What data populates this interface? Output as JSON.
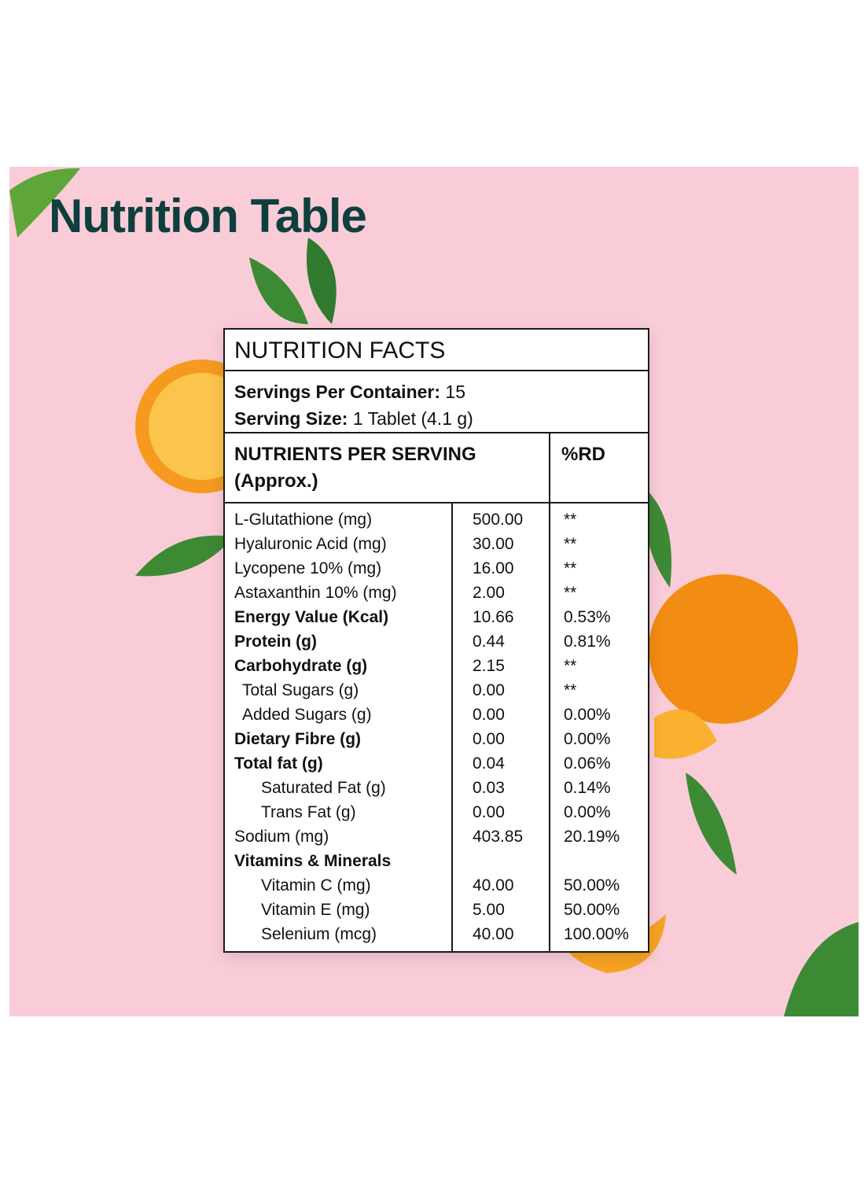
{
  "title": "Nutrition Table",
  "facts": {
    "heading": "NUTRITION FACTS",
    "servings_label": "Servings Per Container:",
    "servings_value": "15",
    "size_label": "Serving Size:",
    "size_value": "1 Tablet (4.1 g)",
    "col_nutrients": "NUTRIENTS PER SERVING (Approx.)",
    "col_rd": "%RD",
    "rows": [
      {
        "name": "L-Glutathione (mg)",
        "amount": "500.00",
        "rd": "**",
        "bold": false,
        "indent": 0
      },
      {
        "name": "Hyaluronic Acid (mg)",
        "amount": "30.00",
        "rd": "**",
        "bold": false,
        "indent": 0
      },
      {
        "name": "Lycopene 10% (mg)",
        "amount": "16.00",
        "rd": "**",
        "bold": false,
        "indent": 0
      },
      {
        "name": "Astaxanthin 10% (mg)",
        "amount": "2.00",
        "rd": "**",
        "bold": false,
        "indent": 0
      },
      {
        "name": "Energy Value (Kcal)",
        "amount": "10.66",
        "rd": "0.53%",
        "bold": true,
        "indent": 0
      },
      {
        "name": "Protein (g)",
        "amount": "0.44",
        "rd": "0.81%",
        "bold": true,
        "indent": 0
      },
      {
        "name": "Carbohydrate (g)",
        "amount": "2.15",
        "rd": "**",
        "bold": true,
        "indent": 0
      },
      {
        "name": "Total Sugars (g)",
        "amount": "0.00",
        "rd": "**",
        "bold": false,
        "indent": 1
      },
      {
        "name": "Added Sugars (g)",
        "amount": "0.00",
        "rd": "0.00%",
        "bold": false,
        "indent": 1
      },
      {
        "name": "Dietary Fibre (g)",
        "amount": "0.00",
        "rd": "0.00%",
        "bold": true,
        "indent": 0
      },
      {
        "name": "Total fat (g)",
        "amount": "0.04",
        "rd": "0.06%",
        "bold": true,
        "indent": 0
      },
      {
        "name": "Saturated Fat (g)",
        "amount": "0.03",
        "rd": "0.14%",
        "bold": false,
        "indent": 2
      },
      {
        "name": "Trans Fat (g)",
        "amount": "0.00",
        "rd": "0.00%",
        "bold": false,
        "indent": 2
      },
      {
        "name": "Sodium (mg)",
        "amount": "403.85",
        "rd": "20.19%",
        "bold": false,
        "indent": 0
      },
      {
        "name": "Vitamins & Minerals",
        "amount": null,
        "rd": null,
        "bold": true,
        "indent": 0
      },
      {
        "name": "Vitamin C (mg)",
        "amount": "40.00",
        "rd": "50.00%",
        "bold": false,
        "indent": 2
      },
      {
        "name": "Vitamin E (mg)",
        "amount": "5.00",
        "rd": "50.00%",
        "bold": false,
        "indent": 2
      },
      {
        "name": "Selenium (mcg)",
        "amount": "40.00",
        "rd": "100.00%",
        "bold": false,
        "indent": 2
      }
    ]
  }
}
